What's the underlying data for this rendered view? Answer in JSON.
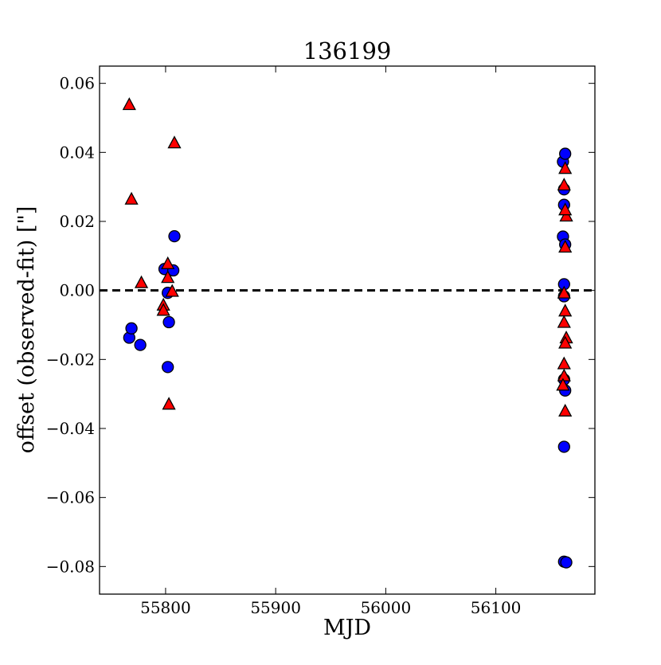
{
  "chart_data": {
    "type": "scatter",
    "title": "136199",
    "xlabel": "MJD",
    "ylabel": "offset (observed-fit) [\"]",
    "xlim": [
      55740,
      56190
    ],
    "ylim": [
      -0.088,
      0.065
    ],
    "x_ticks": [
      55800,
      55900,
      56000,
      56100
    ],
    "x_tick_labels": [
      "55800",
      "55900",
      "56000",
      "56100"
    ],
    "y_ticks": [
      0.06,
      0.04,
      0.02,
      0.0,
      -0.02,
      -0.04,
      -0.06,
      -0.08
    ],
    "y_tick_labels": [
      "0.06",
      "0.04",
      "0.02",
      "0.00",
      "−0.02",
      "−0.04",
      "−0.06",
      "−0.08"
    ],
    "grid": false,
    "reference_line": {
      "y": 0.0,
      "style": "dashed",
      "color": "#000000"
    },
    "series": [
      {
        "marker": "circle",
        "color": "#0000ff",
        "points": [
          [
            55767,
            -0.0137
          ],
          [
            55769,
            -0.011
          ],
          [
            55777,
            -0.0158
          ],
          [
            55799,
            0.0062
          ],
          [
            55802,
            -0.0007
          ],
          [
            55803,
            -0.0092
          ],
          [
            55802,
            -0.0222
          ],
          [
            55807,
            0.0058
          ],
          [
            55808,
            0.0157
          ],
          [
            56161,
            0.0373
          ],
          [
            56163,
            0.0396
          ],
          [
            56162,
            0.0293
          ],
          [
            56162,
            0.0248
          ],
          [
            56161,
            0.0156
          ],
          [
            56163,
            0.0133
          ],
          [
            56162,
            0.0018
          ],
          [
            56162,
            -0.0017
          ],
          [
            56162,
            -0.0258
          ],
          [
            56163,
            -0.029
          ],
          [
            56162,
            -0.0453
          ],
          [
            56162,
            -0.0786
          ],
          [
            56164,
            -0.0788
          ]
        ]
      },
      {
        "marker": "triangle",
        "color": "#ff0000",
        "points": [
          [
            55767,
            0.0538
          ],
          [
            55769,
            0.0264
          ],
          [
            55778,
            0.0022
          ],
          [
            55808,
            0.0427
          ],
          [
            55802,
            0.0077
          ],
          [
            55802,
            0.0037
          ],
          [
            55806,
            -0.0003
          ],
          [
            55798,
            -0.0043
          ],
          [
            55798,
            -0.0058
          ],
          [
            55803,
            -0.033
          ],
          [
            56163,
            0.0353
          ],
          [
            56162,
            0.0305
          ],
          [
            56164,
            0.0215
          ],
          [
            56163,
            0.0233
          ],
          [
            56163,
            0.0125
          ],
          [
            56162,
            -0.0008
          ],
          [
            56163,
            -0.006
          ],
          [
            56162,
            -0.0093
          ],
          [
            56164,
            -0.0138
          ],
          [
            56163,
            -0.0153
          ],
          [
            56162,
            -0.0213
          ],
          [
            56162,
            -0.0248
          ],
          [
            56161,
            -0.0275
          ],
          [
            56163,
            -0.035
          ]
        ]
      }
    ]
  }
}
